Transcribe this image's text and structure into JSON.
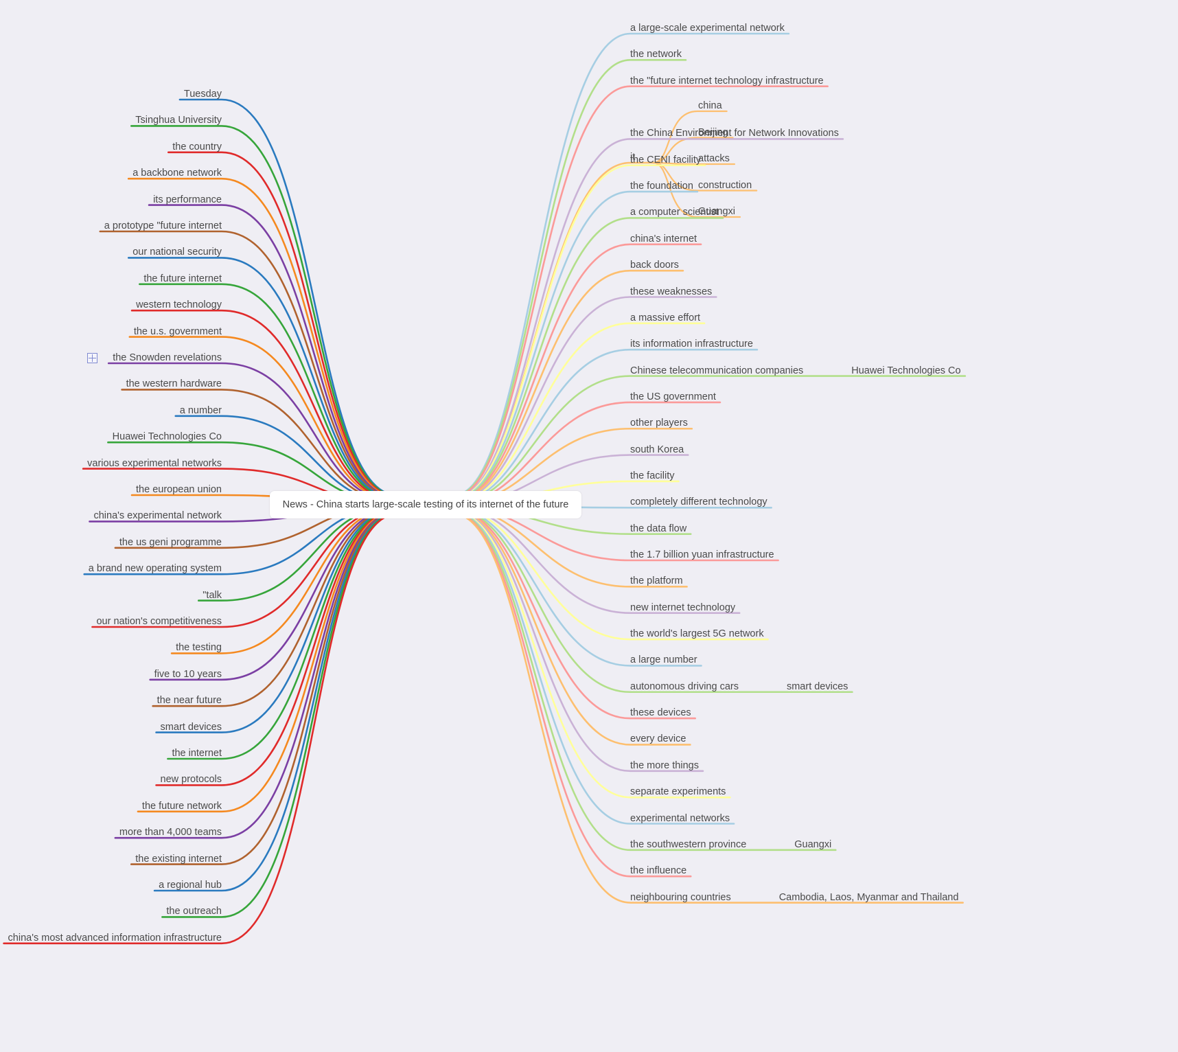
{
  "mindmap": {
    "central_topic": "News - China starts large-scale testing of its internet of the future",
    "left_branches": [
      {
        "label": "Tuesday",
        "color": "#2a7abf"
      },
      {
        "label": "Tsinghua University",
        "color": "#36a53a"
      },
      {
        "label": "the country",
        "color": "#e02a2a"
      },
      {
        "label": "a backbone network",
        "color": "#f5891f"
      },
      {
        "label": "its performance",
        "color": "#7b3fa3"
      },
      {
        "label": "a prototype \"future internet",
        "color": "#b0622e"
      },
      {
        "label": "our national security",
        "color": "#2a7abf"
      },
      {
        "label": "the future internet",
        "color": "#36a53a"
      },
      {
        "label": "western technology",
        "color": "#e02a2a"
      },
      {
        "label": "the u.s. government",
        "color": "#f5891f"
      },
      {
        "label": "the Snowden revelations",
        "color": "#7b3fa3"
      },
      {
        "label": "the western hardware",
        "color": "#b0622e"
      },
      {
        "label": "a number",
        "color": "#2a7abf"
      },
      {
        "label": "Huawei Technologies Co",
        "color": "#36a53a"
      },
      {
        "label": "various experimental networks",
        "color": "#e02a2a"
      },
      {
        "label": "the european union",
        "color": "#f5891f"
      },
      {
        "label": "china's experimental network",
        "color": "#7b3fa3"
      },
      {
        "label": "the us geni programme",
        "color": "#b0622e"
      },
      {
        "label": "a brand new operating system",
        "color": "#2a7abf"
      },
      {
        "label": "\"talk",
        "color": "#36a53a"
      },
      {
        "label": "our nation's competitiveness",
        "color": "#e02a2a"
      },
      {
        "label": "the testing",
        "color": "#f5891f"
      },
      {
        "label": "five to 10 years",
        "color": "#7b3fa3"
      },
      {
        "label": "the near future",
        "color": "#b0622e"
      },
      {
        "label": "smart devices",
        "color": "#2a7abf"
      },
      {
        "label": "the internet",
        "color": "#36a53a"
      },
      {
        "label": "new protocols",
        "color": "#e02a2a"
      },
      {
        "label": "the future network",
        "color": "#f5891f"
      },
      {
        "label": "more than 4,000 teams",
        "color": "#7b3fa3"
      },
      {
        "label": "the existing internet",
        "color": "#b0622e"
      },
      {
        "label": "a regional hub",
        "color": "#2a7abf"
      },
      {
        "label": "the outreach",
        "color": "#36a53a"
      },
      {
        "label": "china's most advanced information infrastructure",
        "color": "#e02a2a"
      }
    ],
    "right_branches": [
      {
        "label": "a large-scale experimental network",
        "color": "#a6cee3",
        "children": []
      },
      {
        "label": "the network",
        "color": "#b2df8a",
        "children": []
      },
      {
        "label": "the \"future internet technology infrastructure",
        "color": "#fb9a99",
        "children": []
      },
      {
        "label": "it",
        "color": "#fdbf6f",
        "children": [
          "china",
          "Beijing",
          "attacks",
          "construction",
          "Guangxi"
        ]
      },
      {
        "label": "the China Environment for Network Innovations",
        "color": "#cab2d6",
        "children": []
      },
      {
        "label": "the CENI facility",
        "color": "#ffff99",
        "children": []
      },
      {
        "label": "the foundation",
        "color": "#a6cee3",
        "children": []
      },
      {
        "label": "a computer scientist",
        "color": "#b2df8a",
        "children": []
      },
      {
        "label": "china's internet",
        "color": "#fb9a99",
        "children": []
      },
      {
        "label": "back doors",
        "color": "#fdbf6f",
        "children": []
      },
      {
        "label": "these weaknesses",
        "color": "#cab2d6",
        "children": []
      },
      {
        "label": "a massive effort",
        "color": "#ffff99",
        "children": []
      },
      {
        "label": "its information infrastructure",
        "color": "#a6cee3",
        "children": []
      },
      {
        "label": "Chinese telecommunication companies",
        "color": "#b2df8a",
        "children": [
          "Huawei Technologies Co"
        ]
      },
      {
        "label": "the US government",
        "color": "#fb9a99",
        "children": []
      },
      {
        "label": "other players",
        "color": "#fdbf6f",
        "children": []
      },
      {
        "label": "south Korea",
        "color": "#cab2d6",
        "children": []
      },
      {
        "label": "the facility",
        "color": "#ffff99",
        "children": []
      },
      {
        "label": "completely different technology",
        "color": "#a6cee3",
        "children": []
      },
      {
        "label": "the data flow",
        "color": "#b2df8a",
        "children": []
      },
      {
        "label": "the 1.7 billion yuan infrastructure",
        "color": "#fb9a99",
        "children": []
      },
      {
        "label": "the platform",
        "color": "#fdbf6f",
        "children": []
      },
      {
        "label": "new internet technology",
        "color": "#cab2d6",
        "children": []
      },
      {
        "label": "the world's largest 5G network",
        "color": "#ffff99",
        "children": []
      },
      {
        "label": "a large number",
        "color": "#a6cee3",
        "children": []
      },
      {
        "label": "autonomous driving cars",
        "color": "#b2df8a",
        "children": [
          "smart devices"
        ]
      },
      {
        "label": "these devices",
        "color": "#fb9a99",
        "children": []
      },
      {
        "label": "every device",
        "color": "#fdbf6f",
        "children": []
      },
      {
        "label": "the more things",
        "color": "#cab2d6",
        "children": []
      },
      {
        "label": "separate experiments",
        "color": "#ffff99",
        "children": []
      },
      {
        "label": "experimental networks",
        "color": "#a6cee3",
        "children": []
      },
      {
        "label": "the southwestern province",
        "color": "#b2df8a",
        "children": [
          "Guangxi"
        ]
      },
      {
        "label": "the influence",
        "color": "#fb9a99",
        "children": []
      },
      {
        "label": "neighbouring countries",
        "color": "#fdbf6f",
        "children": [
          "Cambodia, Laos, Myanmar and Thailand"
        ]
      }
    ]
  }
}
